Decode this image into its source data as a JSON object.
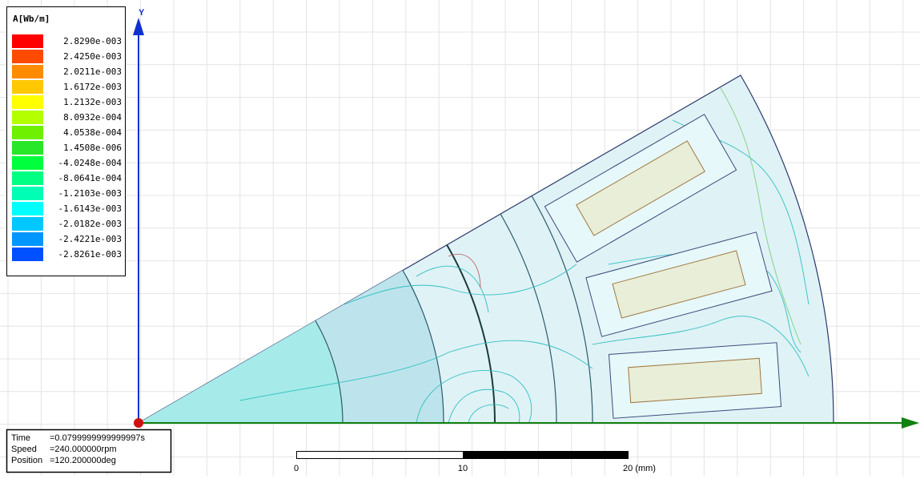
{
  "legend": {
    "title": "A[Wb/m]",
    "entries": [
      {
        "label": "2.8290e-003",
        "color": "#ff0000"
      },
      {
        "label": "2.4250e-003",
        "color": "#ff4a00"
      },
      {
        "label": "2.0211e-003",
        "color": "#ff8c00"
      },
      {
        "label": "1.6172e-003",
        "color": "#ffc800"
      },
      {
        "label": "1.2132e-003",
        "color": "#ffff00"
      },
      {
        "label": "8.0932e-004",
        "color": "#b4ff00"
      },
      {
        "label": "4.0538e-004",
        "color": "#6ef000"
      },
      {
        "label": "1.4508e-006",
        "color": "#28e628"
      },
      {
        "label": "-4.0248e-004",
        "color": "#00ff3c"
      },
      {
        "label": "-8.0641e-004",
        "color": "#00ff82"
      },
      {
        "label": "-1.2103e-003",
        "color": "#00ffb4"
      },
      {
        "label": "-1.6143e-003",
        "color": "#00ffff"
      },
      {
        "label": "-2.0182e-003",
        "color": "#00c8ff"
      },
      {
        "label": "-2.4221e-003",
        "color": "#0096ff"
      },
      {
        "label": "-2.8261e-003",
        "color": "#0050ff"
      }
    ]
  },
  "info": [
    {
      "label": "Time",
      "value": "=0.0799999999999997s"
    },
    {
      "label": "Speed",
      "value": "=240.000000rpm"
    },
    {
      "label": "Position",
      "value": "=120.200000deg"
    }
  ],
  "axes": {
    "y_label": "Y"
  },
  "scale_bar": {
    "labels": [
      "0",
      "10",
      "20 (mm)"
    ]
  }
}
